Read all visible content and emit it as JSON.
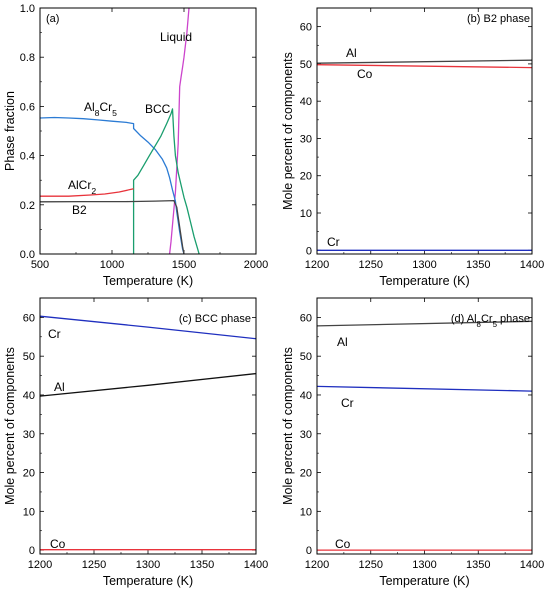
{
  "chart_data": [
    {
      "type": "line",
      "panel_label": "(a)",
      "xlabel": "Temperature (K)",
      "ylabel": "Phase fraction",
      "xlim": [
        500,
        2000
      ],
      "ylim": [
        0,
        1.0
      ],
      "xticks": [
        "500",
        "1000",
        "1500",
        "2000"
      ],
      "yticks": [
        "0.0",
        "0.2",
        "0.4",
        "0.6",
        "0.8",
        "1.0"
      ],
      "series": [
        {
          "name": "Liquid",
          "color": "#cc44cc",
          "points": [
            [
              1400,
              0
            ],
            [
              1410,
              0.05
            ],
            [
              1440,
              0.25
            ],
            [
              1460,
              0.45
            ],
            [
              1470,
              0.68
            ],
            [
              1480,
              0.72
            ],
            [
              1490,
              0.76
            ],
            [
              1500,
              0.8
            ],
            [
              1520,
              0.9
            ],
            [
              1535,
              1.0
            ]
          ]
        },
        {
          "name": "Al8Cr5",
          "color": "#2b7bd4",
          "points": [
            [
              500,
              0.553
            ],
            [
              600,
              0.555
            ],
            [
              700,
              0.553
            ],
            [
              800,
              0.55
            ],
            [
              900,
              0.545
            ],
            [
              1000,
              0.54
            ],
            [
              1100,
              0.535
            ],
            [
              1150,
              0.53
            ],
            [
              1150,
              0.51
            ],
            [
              1200,
              0.48
            ],
            [
              1250,
              0.455
            ],
            [
              1300,
              0.425
            ],
            [
              1350,
              0.385
            ],
            [
              1380,
              0.35
            ],
            [
              1400,
              0.31
            ],
            [
              1420,
              0.26
            ],
            [
              1440,
              0.215
            ],
            [
              1450,
              0.17
            ],
            [
              1470,
              0.09
            ],
            [
              1490,
              0.02
            ],
            [
              1500,
              0
            ]
          ]
        },
        {
          "name": "BCC",
          "color": "#1a9e6e",
          "points": [
            [
              1150,
              0
            ],
            [
              1150,
              0.3
            ],
            [
              1180,
              0.32
            ],
            [
              1220,
              0.36
            ],
            [
              1260,
              0.4
            ],
            [
              1300,
              0.44
            ],
            [
              1340,
              0.48
            ],
            [
              1380,
              0.53
            ],
            [
              1410,
              0.57
            ],
            [
              1420,
              0.59
            ],
            [
              1430,
              0.48
            ],
            [
              1440,
              0.4
            ],
            [
              1460,
              0.33
            ],
            [
              1480,
              0.28
            ],
            [
              1500,
              0.23
            ],
            [
              1520,
              0.19
            ],
            [
              1545,
              0.13
            ],
            [
              1570,
              0.07
            ],
            [
              1595,
              0.02
            ],
            [
              1605,
              0
            ]
          ]
        },
        {
          "name": "AlCr2",
          "color": "#e8333b",
          "points": [
            [
              500,
              0.235
            ],
            [
              700,
              0.235
            ],
            [
              850,
              0.24
            ],
            [
              950,
              0.244
            ],
            [
              1050,
              0.252
            ],
            [
              1150,
              0.265
            ]
          ]
        },
        {
          "name": "B2",
          "color": "#444444",
          "points": [
            [
              500,
              0.212
            ],
            [
              800,
              0.213
            ],
            [
              1100,
              0.213
            ],
            [
              1300,
              0.215
            ],
            [
              1430,
              0.217
            ],
            [
              1450,
              0.19
            ],
            [
              1460,
              0.15
            ],
            [
              1475,
              0.09
            ],
            [
              1490,
              0.03
            ],
            [
              1500,
              0
            ]
          ]
        }
      ],
      "annotations": [
        {
          "text": "Liquid",
          "color": "#cc44cc"
        },
        {
          "text": "Al",
          "sub": "8",
          "text2": "Cr",
          "sub2": "5",
          "color": "#2255bb"
        },
        {
          "text": "BCC",
          "color": "#1a9e6e"
        },
        {
          "text": "AlCr",
          "sub": "2",
          "color": "#e8333b"
        },
        {
          "text": "B2",
          "color": "#000000"
        }
      ]
    },
    {
      "type": "line",
      "panel_label": "(b) B2 phase",
      "xlabel": "Temperature (K)",
      "ylabel": "Mole percent of components",
      "xlim": [
        1200,
        1400
      ],
      "ylim": [
        -1,
        65
      ],
      "xticks": [
        "1200",
        "1250",
        "1300",
        "1350",
        "1400"
      ],
      "yticks": [
        "0",
        "10",
        "20",
        "30",
        "40",
        "50",
        "60"
      ],
      "series": [
        {
          "name": "Al",
          "color": "#444444",
          "points": [
            [
              1200,
              50.2
            ],
            [
              1400,
              51.0
            ]
          ]
        },
        {
          "name": "Co",
          "color": "#e8333b",
          "points": [
            [
              1200,
              49.8
            ],
            [
              1400,
              49.0
            ]
          ]
        },
        {
          "name": "Cr",
          "color": "#1f2fbf",
          "points": [
            [
              1200,
              0
            ],
            [
              1400,
              0
            ]
          ]
        }
      ],
      "annotations": [
        {
          "text": "Al",
          "color": "#000000"
        },
        {
          "text": "Co",
          "color": "#e8333b"
        },
        {
          "text": "Cr",
          "color": "#1f2fbf"
        }
      ]
    },
    {
      "type": "line",
      "panel_label": "(c) BCC phase",
      "xlabel": "Temperature (K)",
      "ylabel": "Mole percent of components",
      "xlim": [
        1200,
        1400
      ],
      "ylim": [
        -1,
        65
      ],
      "xticks": [
        "1200",
        "1250",
        "1300",
        "1350",
        "1400"
      ],
      "yticks": [
        "0",
        "10",
        "20",
        "30",
        "40",
        "50",
        "60"
      ],
      "series": [
        {
          "name": "Cr",
          "color": "#1f2fbf",
          "points": [
            [
              1200,
              60.3
            ],
            [
              1300,
              57.5
            ],
            [
              1400,
              54.5
            ]
          ]
        },
        {
          "name": "Al",
          "color": "#111111",
          "points": [
            [
              1200,
              39.7
            ],
            [
              1300,
              42.5
            ],
            [
              1400,
              45.5
            ]
          ]
        },
        {
          "name": "Co",
          "color": "#e8333b",
          "points": [
            [
              1200,
              0.1
            ],
            [
              1400,
              0.1
            ]
          ]
        }
      ],
      "annotations": [
        {
          "text": "Cr",
          "color": "#1f2fbf"
        },
        {
          "text": "Al",
          "color": "#000000"
        },
        {
          "text": "Co",
          "color": "#e8333b"
        }
      ]
    },
    {
      "type": "line",
      "panel_label_prefix": "(d) Al",
      "panel_label_sub1": "8",
      "panel_label_mid": "Cr",
      "panel_label_sub2": "5",
      "panel_label_suffix": " phase",
      "xlabel": "Temperature (K)",
      "ylabel": "Mole percent of components",
      "xlim": [
        1200,
        1400
      ],
      "ylim": [
        -1,
        65
      ],
      "xticks": [
        "1200",
        "1250",
        "1300",
        "1350",
        "1400"
      ],
      "yticks": [
        "0",
        "10",
        "20",
        "30",
        "40",
        "50",
        "60"
      ],
      "series": [
        {
          "name": "Al",
          "color": "#444444",
          "points": [
            [
              1200,
              57.8
            ],
            [
              1400,
              59.0
            ]
          ]
        },
        {
          "name": "Cr",
          "color": "#1f2fbf",
          "points": [
            [
              1200,
              42.2
            ],
            [
              1400,
              41.0
            ]
          ]
        },
        {
          "name": "Co",
          "color": "#e8333b",
          "points": [
            [
              1200,
              0
            ],
            [
              1400,
              0
            ]
          ]
        }
      ],
      "annotations": [
        {
          "text": "Al",
          "color": "#000000"
        },
        {
          "text": "Cr",
          "color": "#1f2fbf"
        },
        {
          "text": "Co",
          "color": "#e8333b"
        }
      ]
    }
  ]
}
